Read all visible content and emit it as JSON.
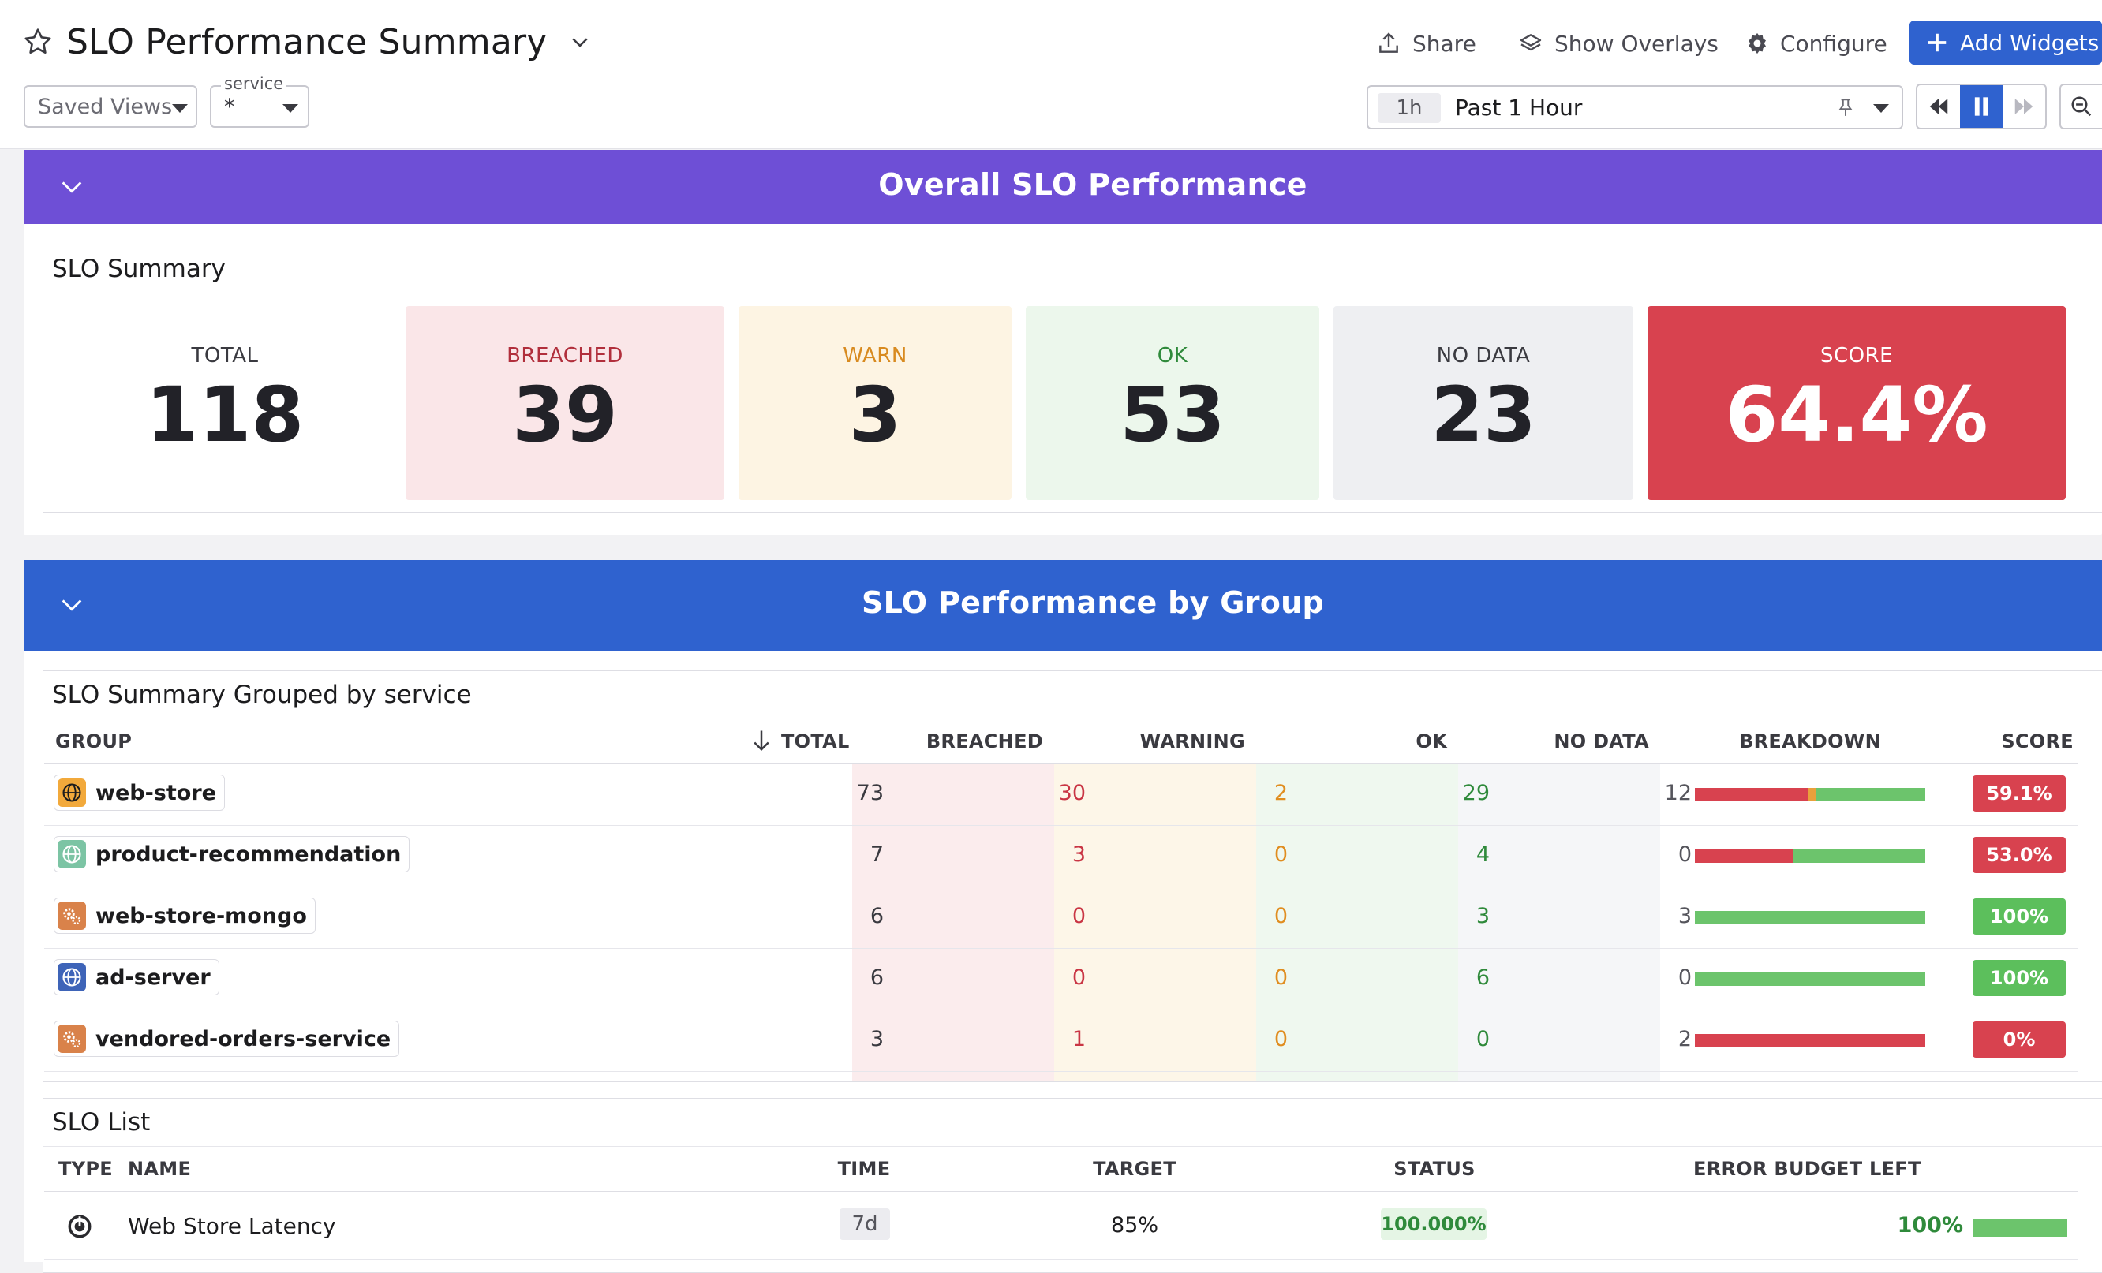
{
  "header": {
    "title": "SLO Performance Summary",
    "share_label": "Share",
    "overlays_label": "Show Overlays",
    "configure_label": "Configure",
    "add_widgets_label": "Add Widgets",
    "saved_views_label": "Saved Views",
    "service_var_label": "service",
    "service_var_value": "*",
    "time_chip": "1h",
    "time_label": "Past 1 Hour"
  },
  "overall": {
    "band_title": "Overall SLO Performance",
    "panel_title": "SLO Summary",
    "tiles": [
      {
        "label": "TOTAL",
        "value": "118"
      },
      {
        "label": "BREACHED",
        "value": "39"
      },
      {
        "label": "WARN",
        "value": "3"
      },
      {
        "label": "OK",
        "value": "53"
      },
      {
        "label": "NO DATA",
        "value": "23"
      },
      {
        "label": "SCORE",
        "value": "64.4%"
      }
    ]
  },
  "by_group": {
    "band_title": "SLO Performance by Group",
    "panel_title": "SLO Summary Grouped by service",
    "columns": [
      "GROUP",
      "TOTAL",
      "BREACHED",
      "WARNING",
      "OK",
      "NO DATA",
      "BREAKDOWN",
      "SCORE"
    ],
    "rows": [
      {
        "group": "web-store",
        "icon": "globe-icon",
        "total": "73",
        "breached": "30",
        "warning": "2",
        "ok": "29",
        "nodata": "12",
        "score": "59.1%",
        "breakdown": [
          30,
          2,
          29
        ]
      },
      {
        "group": "product-recommendation",
        "icon": "globe-icon",
        "total": "7",
        "breached": "3",
        "warning": "0",
        "ok": "4",
        "nodata": "0",
        "score": "53.0%",
        "breakdown": [
          3,
          0,
          4
        ]
      },
      {
        "group": "web-store-mongo",
        "icon": "gears-icon",
        "total": "6",
        "breached": "0",
        "warning": "0",
        "ok": "3",
        "nodata": "3",
        "score": "100%",
        "breakdown": [
          0,
          0,
          3
        ]
      },
      {
        "group": "ad-server",
        "icon": "globe-icon",
        "total": "6",
        "breached": "0",
        "warning": "0",
        "ok": "6",
        "nodata": "0",
        "score": "100%",
        "breakdown": [
          0,
          0,
          6
        ]
      },
      {
        "group": "vendored-orders-service",
        "icon": "gears-icon",
        "total": "3",
        "breached": "1",
        "warning": "0",
        "ok": "0",
        "nodata": "2",
        "score": "0%",
        "breakdown": [
          1,
          0,
          0
        ]
      }
    ]
  },
  "slo_list": {
    "panel_title": "SLO List",
    "columns": [
      "TYPE",
      "NAME",
      "TIME",
      "TARGET",
      "STATUS",
      "ERROR BUDGET LEFT"
    ],
    "rows": [
      {
        "type_icon": "latency-monitor-icon",
        "name": "Web Store Latency",
        "time": "7d",
        "target": "85%",
        "status": "100.000%",
        "budget": "100%",
        "budget_fraction": 1.0
      }
    ]
  },
  "colors": {
    "purple_band": "#6e4fd6",
    "blue_band": "#2f62cf",
    "breached": "#d8424f",
    "warn": "#e9a03b",
    "ok": "#6cc46c",
    "accent": "#2f62cf"
  }
}
